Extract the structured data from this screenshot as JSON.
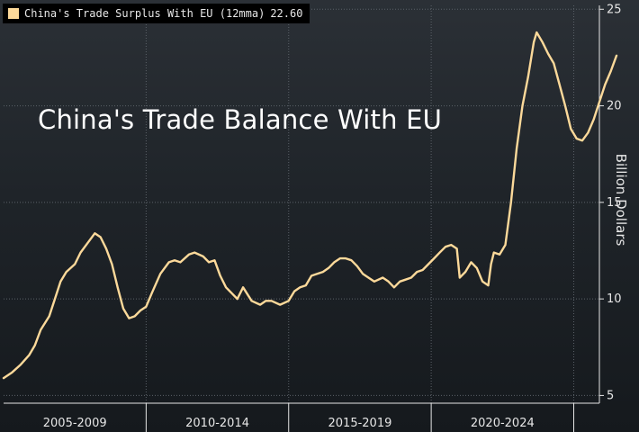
{
  "legend": {
    "series_label": "China's Trade Surplus With EU (12mma)",
    "last_value": "22.60",
    "swatch_color": "#fcd99a"
  },
  "annotation": {
    "text": "China's Trade Balance With EU"
  },
  "colors": {
    "line": "#fcd99a",
    "grid": "#5b6168",
    "text": "#e6e6e6"
  },
  "chart_data": {
    "type": "line",
    "title": "",
    "annotation": "China's Trade Balance With EU",
    "ylabel": "Billion Dollars",
    "xlabel": "",
    "x_unit": "year",
    "xlim": [
      2005,
      2025.9
    ],
    "ylim": [
      4.6,
      25.2
    ],
    "y_axis_position": "right",
    "yticks": [
      5,
      10,
      15,
      20,
      25
    ],
    "x_periods": [
      {
        "label": "2005-2009",
        "start": 2005,
        "end": 2010
      },
      {
        "label": "2010-2014",
        "start": 2010,
        "end": 2015
      },
      {
        "label": "2015-2019",
        "start": 2015,
        "end": 2020
      },
      {
        "label": "2020-2024",
        "start": 2020,
        "end": 2025
      }
    ],
    "grid": true,
    "legend_position": "top-left",
    "series": [
      {
        "name": "China's Trade Surplus With EU (12mma)",
        "last_value": 22.6,
        "points": [
          [
            2005.0,
            5.9
          ],
          [
            2005.3,
            6.2
          ],
          [
            2005.6,
            6.6
          ],
          [
            2005.9,
            7.1
          ],
          [
            2006.1,
            7.6
          ],
          [
            2006.3,
            8.4
          ],
          [
            2006.6,
            9.1
          ],
          [
            2006.8,
            10.0
          ],
          [
            2007.0,
            10.9
          ],
          [
            2007.2,
            11.4
          ],
          [
            2007.5,
            11.8
          ],
          [
            2007.7,
            12.4
          ],
          [
            2008.0,
            13.0
          ],
          [
            2008.2,
            13.4
          ],
          [
            2008.4,
            13.2
          ],
          [
            2008.6,
            12.6
          ],
          [
            2008.8,
            11.8
          ],
          [
            2009.0,
            10.6
          ],
          [
            2009.2,
            9.5
          ],
          [
            2009.4,
            9.0
          ],
          [
            2009.6,
            9.1
          ],
          [
            2009.8,
            9.4
          ],
          [
            2010.0,
            9.6
          ],
          [
            2010.2,
            10.3
          ],
          [
            2010.5,
            11.3
          ],
          [
            2010.8,
            11.9
          ],
          [
            2011.0,
            12.0
          ],
          [
            2011.2,
            11.9
          ],
          [
            2011.5,
            12.3
          ],
          [
            2011.7,
            12.4
          ],
          [
            2012.0,
            12.2
          ],
          [
            2012.2,
            11.9
          ],
          [
            2012.4,
            12.0
          ],
          [
            2012.6,
            11.2
          ],
          [
            2012.8,
            10.6
          ],
          [
            2013.0,
            10.3
          ],
          [
            2013.2,
            10.0
          ],
          [
            2013.4,
            10.6
          ],
          [
            2013.7,
            9.9
          ],
          [
            2014.0,
            9.7
          ],
          [
            2014.2,
            9.9
          ],
          [
            2014.4,
            9.9
          ],
          [
            2014.7,
            9.7
          ],
          [
            2015.0,
            9.9
          ],
          [
            2015.2,
            10.4
          ],
          [
            2015.4,
            10.6
          ],
          [
            2015.6,
            10.7
          ],
          [
            2015.8,
            11.2
          ],
          [
            2016.0,
            11.3
          ],
          [
            2016.2,
            11.4
          ],
          [
            2016.4,
            11.6
          ],
          [
            2016.6,
            11.9
          ],
          [
            2016.8,
            12.1
          ],
          [
            2017.0,
            12.1
          ],
          [
            2017.2,
            12.0
          ],
          [
            2017.4,
            11.7
          ],
          [
            2017.6,
            11.3
          ],
          [
            2017.8,
            11.1
          ],
          [
            2018.0,
            10.9
          ],
          [
            2018.3,
            11.1
          ],
          [
            2018.5,
            10.9
          ],
          [
            2018.7,
            10.6
          ],
          [
            2018.9,
            10.9
          ],
          [
            2019.1,
            11.0
          ],
          [
            2019.3,
            11.1
          ],
          [
            2019.5,
            11.4
          ],
          [
            2019.7,
            11.5
          ],
          [
            2019.9,
            11.8
          ],
          [
            2020.1,
            12.1
          ],
          [
            2020.3,
            12.4
          ],
          [
            2020.5,
            12.7
          ],
          [
            2020.7,
            12.8
          ],
          [
            2020.9,
            12.6
          ],
          [
            2021.0,
            11.1
          ],
          [
            2021.2,
            11.4
          ],
          [
            2021.4,
            11.9
          ],
          [
            2021.6,
            11.6
          ],
          [
            2021.8,
            10.9
          ],
          [
            2022.0,
            10.7
          ],
          [
            2022.1,
            11.8
          ],
          [
            2022.2,
            12.4
          ],
          [
            2022.4,
            12.3
          ],
          [
            2022.6,
            12.8
          ],
          [
            2022.8,
            15.0
          ],
          [
            2023.0,
            17.8
          ],
          [
            2023.2,
            20.0
          ],
          [
            2023.4,
            21.5
          ],
          [
            2023.6,
            23.3
          ],
          [
            2023.7,
            23.8
          ],
          [
            2023.9,
            23.3
          ],
          [
            2024.1,
            22.7
          ],
          [
            2024.3,
            22.2
          ],
          [
            2024.5,
            21.1
          ],
          [
            2024.7,
            20.0
          ],
          [
            2024.9,
            18.8
          ],
          [
            2025.1,
            18.3
          ],
          [
            2025.3,
            18.2
          ],
          [
            2025.5,
            18.6
          ],
          [
            2025.7,
            19.3
          ],
          [
            2025.9,
            20.2
          ],
          [
            2026.1,
            21.1
          ],
          [
            2026.3,
            21.8
          ],
          [
            2026.5,
            22.6
          ]
        ]
      }
    ]
  }
}
